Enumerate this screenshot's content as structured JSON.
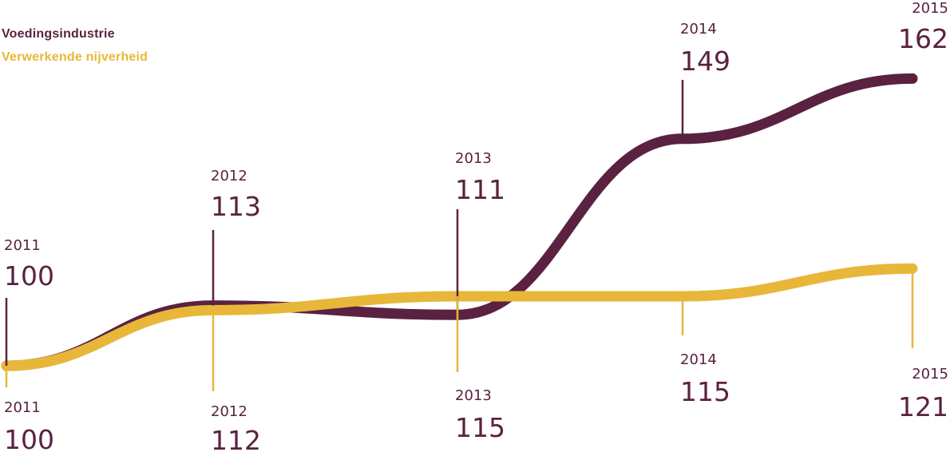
{
  "colors": {
    "food": "#5a2240",
    "manufacturing": "#e8b73a"
  },
  "legend": {
    "food": "Voedingsindustrie",
    "manufacturing": "Verwerkende nijverheid"
  },
  "chart_data": {
    "type": "line",
    "title": "",
    "xlabel": "",
    "ylabel": "",
    "x": [
      "2011",
      "2012",
      "2013",
      "2014",
      "2015"
    ],
    "series": [
      {
        "name": "Voedingsindustrie",
        "color": "#5a2240",
        "values": [
          100,
          113,
          111,
          149,
          162
        ],
        "labels": [
          "100",
          "113",
          "111",
          "149",
          "162"
        ]
      },
      {
        "name": "Verwerkende nijverheid",
        "color": "#e8b73a",
        "values": [
          100,
          112,
          115,
          115,
          121
        ],
        "labels": [
          "100",
          "112",
          "115",
          "115",
          "121"
        ]
      }
    ],
    "grid": false,
    "legend_position": "top-left"
  }
}
